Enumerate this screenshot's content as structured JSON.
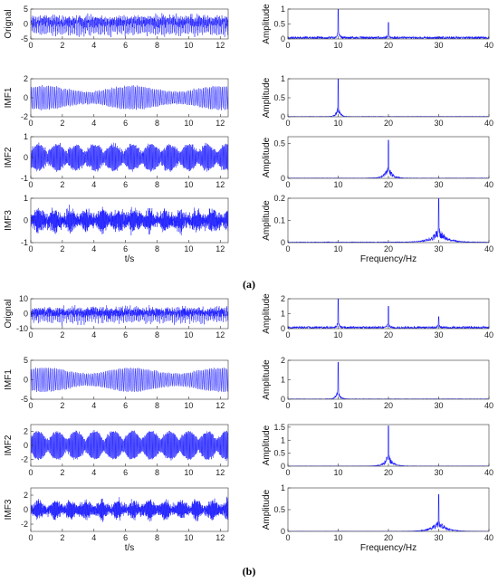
{
  "colors": {
    "signal": "#1a1aff",
    "axis": "#333333"
  },
  "captions": [
    "(a)",
    "(b)"
  ],
  "chart_data": [
    {
      "type": "line",
      "group": 0,
      "panel": "time",
      "row": 0,
      "ylabel": "Orignal",
      "xlabel": "",
      "xlim": [
        0,
        12.5
      ],
      "ylim": [
        -5,
        5
      ],
      "xticks": [
        0,
        2,
        4,
        6,
        8,
        10,
        12
      ],
      "yticks": [
        -5,
        0,
        5
      ],
      "signal": {
        "amp": 3.0,
        "freqs": [
          10,
          20
        ],
        "noise": 1.0,
        "envelope": "flat"
      }
    },
    {
      "type": "line",
      "group": 0,
      "panel": "time",
      "row": 1,
      "ylabel": "IMF1",
      "xlabel": "",
      "xlim": [
        0,
        12.5
      ],
      "ylim": [
        -2,
        2
      ],
      "xticks": [
        0,
        2,
        4,
        6,
        8,
        10,
        12
      ],
      "yticks": [
        -2,
        0,
        2
      ],
      "signal": {
        "amp": 1.2,
        "freqs": [
          10
        ],
        "noise": 0.1,
        "envelope": "slow"
      }
    },
    {
      "type": "line",
      "group": 0,
      "panel": "time",
      "row": 2,
      "ylabel": "IMF2",
      "xlabel": "",
      "xlim": [
        0,
        12.5
      ],
      "ylim": [
        -1,
        1
      ],
      "xticks": [
        0,
        2,
        4,
        6,
        8,
        10,
        12
      ],
      "yticks": [
        -1,
        0,
        1
      ],
      "signal": {
        "amp": 0.6,
        "freqs": [
          20
        ],
        "noise": 0.1,
        "envelope": "beat"
      }
    },
    {
      "type": "line",
      "group": 0,
      "panel": "time",
      "row": 3,
      "ylabel": "IMF3",
      "xlabel": "t/s",
      "xlim": [
        0,
        12.5
      ],
      "ylim": [
        -1,
        1
      ],
      "xticks": [
        0,
        2,
        4,
        6,
        8,
        10,
        12
      ],
      "yticks": [
        -1,
        0,
        1
      ],
      "signal": {
        "amp": 0.35,
        "freqs": [
          30
        ],
        "noise": 0.2,
        "envelope": "bursts"
      }
    },
    {
      "type": "line",
      "group": 0,
      "panel": "freq",
      "row": 0,
      "ylabel": "Amplitude",
      "xlabel": "",
      "xlim": [
        0,
        40
      ],
      "ylim": [
        0,
        1
      ],
      "xticks": [
        0,
        10,
        20,
        30,
        40
      ],
      "yticks": [
        0,
        0.5,
        1
      ],
      "peaks": [
        {
          "f": 10,
          "a": 1.0,
          "w": 0.2
        },
        {
          "f": 20,
          "a": 0.55,
          "w": 0.2
        }
      ],
      "floor": 0.08
    },
    {
      "type": "line",
      "group": 0,
      "panel": "freq",
      "row": 1,
      "ylabel": "Amplitude",
      "xlabel": "",
      "xlim": [
        0,
        40
      ],
      "ylim": [
        0,
        1
      ],
      "xticks": [
        0,
        10,
        20,
        30,
        40
      ],
      "yticks": [
        0,
        0.5,
        1
      ],
      "peaks": [
        {
          "f": 10,
          "a": 1.0,
          "w": 0.4
        }
      ],
      "floor": 0.01
    },
    {
      "type": "line",
      "group": 0,
      "panel": "freq",
      "row": 2,
      "ylabel": "Amplitude",
      "xlabel": "",
      "xlim": [
        0,
        40
      ],
      "ylim": [
        0,
        0.6
      ],
      "xticks": [
        0,
        10,
        20,
        30,
        40
      ],
      "yticks": [
        0,
        0.5
      ],
      "peaks": [
        {
          "f": 20,
          "a": 0.55,
          "w": 0.8
        }
      ],
      "floor": 0.005
    },
    {
      "type": "line",
      "group": 0,
      "panel": "freq",
      "row": 3,
      "ylabel": "Amplitude",
      "xlabel": "Frequency/Hz",
      "xlim": [
        0,
        40
      ],
      "ylim": [
        0,
        0.2
      ],
      "xticks": [
        0,
        10,
        20,
        30,
        40
      ],
      "yticks": [
        0,
        0.1,
        0.2
      ],
      "peaks": [
        {
          "f": 30,
          "a": 0.2,
          "w": 1.6
        }
      ],
      "floor": 0.003
    },
    {
      "type": "line",
      "group": 1,
      "panel": "time",
      "row": 0,
      "ylabel": "Orignal",
      "xlabel": "",
      "xlim": [
        0,
        12.5
      ],
      "ylim": [
        -10,
        10
      ],
      "xticks": [
        0,
        2,
        4,
        6,
        8,
        10,
        12
      ],
      "yticks": [
        -10,
        0,
        10
      ],
      "signal": {
        "amp": 5.0,
        "freqs": [
          10,
          20,
          30
        ],
        "noise": 2.0,
        "envelope": "flat"
      }
    },
    {
      "type": "line",
      "group": 1,
      "panel": "time",
      "row": 1,
      "ylabel": "IMF1",
      "xlabel": "",
      "xlim": [
        0,
        12.5
      ],
      "ylim": [
        -5,
        5
      ],
      "xticks": [
        0,
        2,
        4,
        6,
        8,
        10,
        12
      ],
      "yticks": [
        -5,
        0,
        5
      ],
      "signal": {
        "amp": 3.0,
        "freqs": [
          10
        ],
        "noise": 0.2,
        "envelope": "slow"
      }
    },
    {
      "type": "line",
      "group": 1,
      "panel": "time",
      "row": 2,
      "ylabel": "IMF2",
      "xlabel": "",
      "xlim": [
        0,
        12.5
      ],
      "ylim": [
        -3,
        3
      ],
      "xticks": [
        0,
        2,
        4,
        6,
        8,
        10,
        12
      ],
      "yticks": [
        -2,
        0,
        2
      ],
      "signal": {
        "amp": 2.0,
        "freqs": [
          20
        ],
        "noise": 0.2,
        "envelope": "beat"
      }
    },
    {
      "type": "line",
      "group": 1,
      "panel": "time",
      "row": 3,
      "ylabel": "IMF3",
      "xlabel": "t/s",
      "xlim": [
        0,
        12.5
      ],
      "ylim": [
        -3,
        3
      ],
      "xticks": [
        0,
        2,
        4,
        6,
        8,
        10,
        12
      ],
      "yticks": [
        -2,
        0,
        2
      ],
      "signal": {
        "amp": 1.0,
        "freqs": [
          30
        ],
        "noise": 0.4,
        "envelope": "bursts"
      }
    },
    {
      "type": "line",
      "group": 1,
      "panel": "freq",
      "row": 0,
      "ylabel": "Amplitude",
      "xlabel": "",
      "xlim": [
        0,
        40
      ],
      "ylim": [
        0,
        2
      ],
      "xticks": [
        0,
        10,
        20,
        30,
        40
      ],
      "yticks": [
        0,
        1,
        2
      ],
      "peaks": [
        {
          "f": 10,
          "a": 2.0,
          "w": 0.2
        },
        {
          "f": 20,
          "a": 1.5,
          "w": 0.2
        },
        {
          "f": 30,
          "a": 0.8,
          "w": 0.2
        }
      ],
      "floor": 0.15
    },
    {
      "type": "line",
      "group": 1,
      "panel": "freq",
      "row": 1,
      "ylabel": "Amplitude",
      "xlabel": "",
      "xlim": [
        0,
        40
      ],
      "ylim": [
        0,
        2
      ],
      "xticks": [
        0,
        10,
        20,
        30,
        40
      ],
      "yticks": [
        0,
        1,
        2
      ],
      "peaks": [
        {
          "f": 10,
          "a": 1.9,
          "w": 0.4
        }
      ],
      "floor": 0.02
    },
    {
      "type": "line",
      "group": 1,
      "panel": "freq",
      "row": 2,
      "ylabel": "Amplitude",
      "xlabel": "",
      "xlim": [
        0,
        40
      ],
      "ylim": [
        0,
        1.6
      ],
      "xticks": [
        0,
        10,
        20,
        30,
        40
      ],
      "yticks": [
        0,
        0.5,
        1,
        1.5
      ],
      "peaks": [
        {
          "f": 20,
          "a": 1.55,
          "w": 0.8
        }
      ],
      "floor": 0.01
    },
    {
      "type": "line",
      "group": 1,
      "panel": "freq",
      "row": 3,
      "ylabel": "Amplitude",
      "xlabel": "Frequency/Hz",
      "xlim": [
        0,
        40
      ],
      "ylim": [
        0,
        1
      ],
      "xticks": [
        0,
        10,
        20,
        30,
        40
      ],
      "yticks": [
        0,
        0.5,
        1
      ],
      "peaks": [
        {
          "f": 30,
          "a": 0.85,
          "w": 1.4
        }
      ],
      "floor": 0.005
    }
  ]
}
